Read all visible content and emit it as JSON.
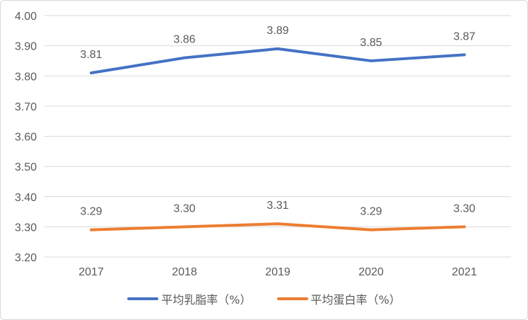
{
  "chart_data": {
    "type": "line",
    "title": "",
    "xlabel": "",
    "ylabel": "",
    "categories": [
      "2017",
      "2018",
      "2019",
      "2020",
      "2021"
    ],
    "ylim": [
      3.2,
      4.0
    ],
    "yticks": [
      "3.20",
      "3.30",
      "3.40",
      "3.50",
      "3.60",
      "3.70",
      "3.80",
      "3.90",
      "4.00"
    ],
    "grid": true,
    "legend_position": "bottom",
    "series": [
      {
        "name": "平均乳脂率（%）",
        "color": "#4472C4",
        "values": [
          3.81,
          3.86,
          3.89,
          3.85,
          3.87
        ],
        "labels": [
          "3.81",
          "3.86",
          "3.89",
          "3.85",
          "3.87"
        ]
      },
      {
        "name": "平均蛋白率（%）",
        "color": "#ED7D31",
        "values": [
          3.29,
          3.3,
          3.31,
          3.29,
          3.3
        ],
        "labels": [
          "3.29",
          "3.30",
          "3.31",
          "3.29",
          "3.30"
        ]
      }
    ]
  }
}
